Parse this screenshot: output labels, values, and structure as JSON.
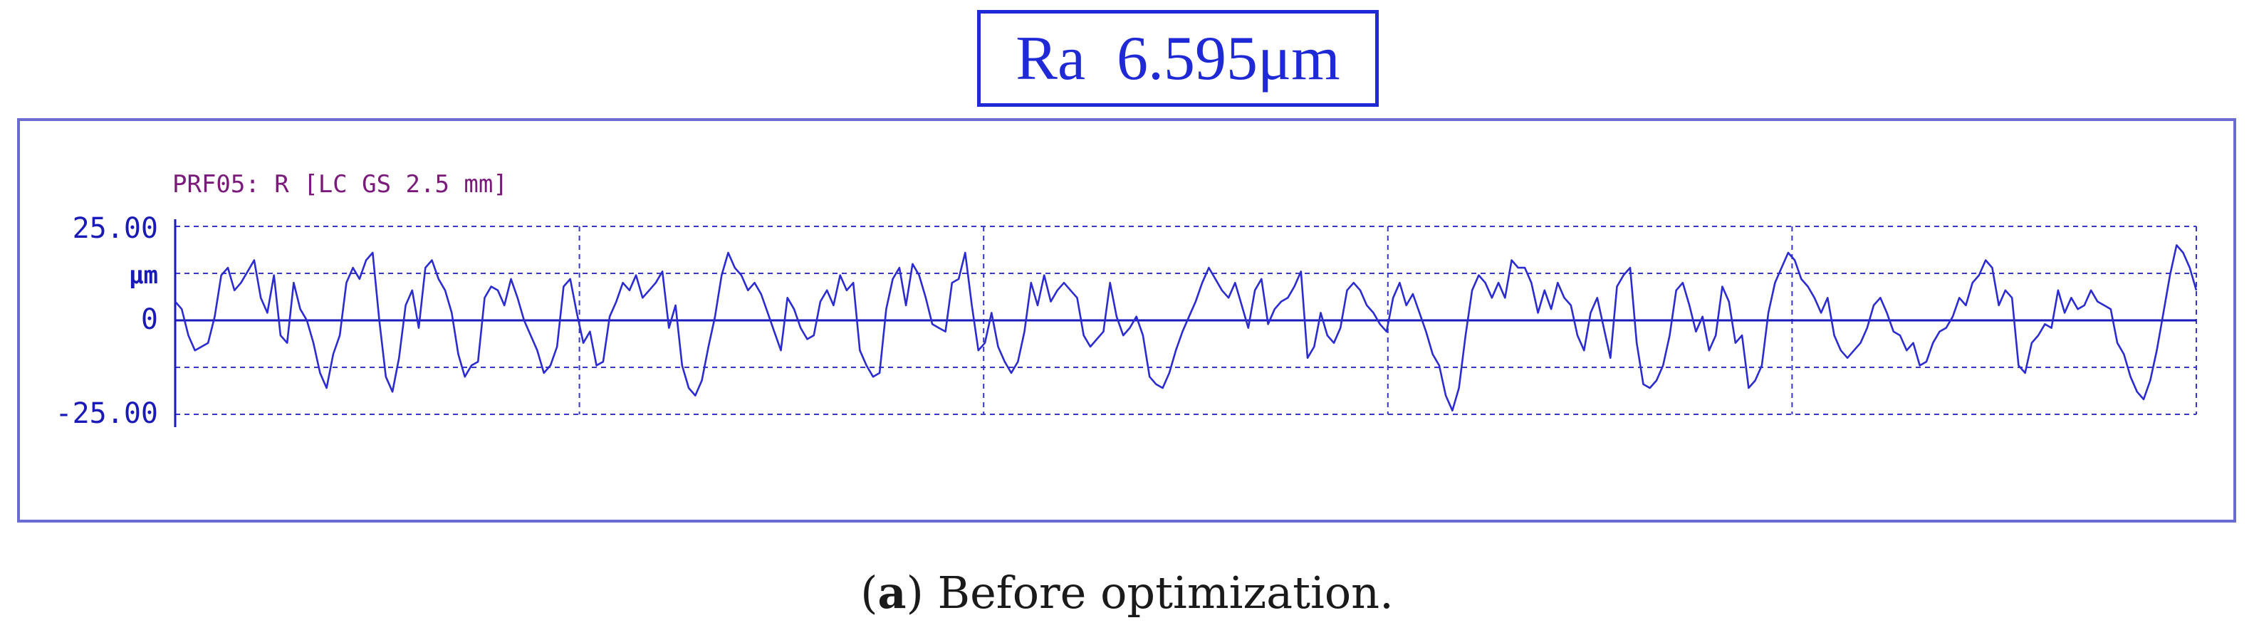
{
  "header": {
    "ra_text": "Ra  6.595μm"
  },
  "caption": {
    "open_paren": "(",
    "letter": "a",
    "close_paren": ")",
    "text": " Before optimization."
  },
  "colors": {
    "trace": "#2b2bd0",
    "grid": "#3838c8",
    "axis": "#1a1ab8",
    "label_purple": "#7a1a7a",
    "frame": "#6b6bd4",
    "ra_box": "#1f2ad6"
  },
  "chart_data": {
    "type": "line",
    "profile_label": "PRF05: R [LC GS 2.5 mm]",
    "ytick_labels": [
      "25.00",
      "0",
      "-25.00"
    ],
    "yunit": "μm",
    "ylim": [
      -25,
      25
    ],
    "xlim": [
      0,
      1
    ],
    "grid": true,
    "series": [
      {
        "values": [
          5,
          3,
          -4,
          -8,
          -7,
          -6,
          1,
          12,
          14,
          8,
          10,
          13,
          16,
          6,
          2,
          12,
          -4,
          -6,
          10,
          3,
          0,
          -6,
          -14,
          -18,
          -9,
          -4,
          10,
          14,
          11,
          16,
          18,
          0,
          -15,
          -19,
          -10,
          4,
          8,
          -2,
          14,
          16,
          11,
          8,
          2,
          -9,
          -15,
          -12,
          -11,
          6,
          9,
          8,
          4,
          11,
          6,
          0,
          -4,
          -8,
          -14,
          -12,
          -7,
          9,
          11,
          2,
          -6,
          -3,
          -12,
          -11,
          1,
          5,
          10,
          8,
          12,
          6,
          8,
          10,
          13,
          -2,
          4,
          -12,
          -18,
          -20,
          -16,
          -7,
          1,
          12,
          18,
          14,
          12,
          8,
          10,
          7,
          2,
          -3,
          -8,
          6,
          3,
          -2,
          -5,
          -4,
          5,
          8,
          4,
          12,
          8,
          10,
          -8,
          -12,
          -15,
          -14,
          3,
          11,
          14,
          4,
          15,
          12,
          6,
          -1,
          -2,
          -3,
          10,
          11,
          18,
          4,
          -8,
          -6,
          2,
          -7,
          -11,
          -14,
          -11,
          -3,
          10,
          4,
          12,
          5,
          8,
          10,
          8,
          6,
          -4,
          -7,
          -5,
          -3,
          10,
          1,
          -4,
          -2,
          1,
          -4,
          -15,
          -17,
          -18,
          -14,
          -8,
          -3,
          1,
          5,
          10,
          14,
          11,
          8,
          6,
          10,
          4,
          -2,
          8,
          11,
          -1,
          3,
          5,
          6,
          9,
          13,
          -10,
          -7,
          2,
          -4,
          -6,
          -2,
          8,
          10,
          8,
          4,
          2,
          -1,
          -3,
          6,
          10,
          4,
          7,
          2,
          -3,
          -9,
          -12,
          -20,
          -24,
          -18,
          -4,
          8,
          12,
          10,
          6,
          10,
          6,
          16,
          14,
          14,
          10,
          2,
          8,
          3,
          10,
          6,
          4,
          -4,
          -8,
          2,
          6,
          -2,
          -10,
          9,
          12,
          14,
          -6,
          -17,
          -18,
          -16,
          -12,
          -4,
          8,
          10,
          4,
          -3,
          1,
          -8,
          -4,
          9,
          5,
          -6,
          -4,
          -18,
          -16,
          -12,
          2,
          10,
          14,
          18,
          16,
          11,
          9,
          6,
          2,
          6,
          -4,
          -8,
          -10,
          -8,
          -6,
          -2,
          4,
          6,
          2,
          -3,
          -4,
          -8,
          -6,
          -12,
          -11,
          -6,
          -3,
          -2,
          1,
          6,
          4,
          10,
          12,
          16,
          14,
          4,
          8,
          6,
          -12,
          -14,
          -6,
          -4,
          -1,
          -2,
          8,
          2,
          6,
          3,
          4,
          8,
          5,
          4,
          3,
          -6,
          -9,
          -15,
          -19,
          -21,
          -16,
          -8,
          2,
          12,
          20,
          18,
          14,
          8
        ]
      }
    ]
  }
}
